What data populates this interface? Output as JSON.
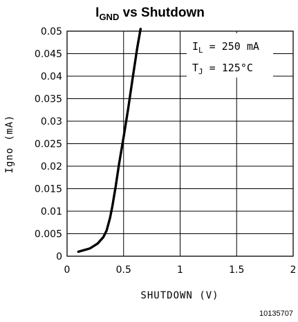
{
  "chart_data": {
    "type": "line",
    "title_main": "I",
    "title_sub": "GND",
    "title_rest": " vs Shutdown",
    "xlabel": "SHUTDOWN (V)",
    "ylabel": "Igno (mA)",
    "xlim": [
      0,
      2
    ],
    "ylim": [
      0,
      0.05
    ],
    "x_ticks": [
      "0",
      "0.5",
      "1",
      "1.5",
      "2"
    ],
    "y_ticks": [
      "0",
      "0.005",
      "0.01",
      "0.015",
      "0.02",
      "0.025",
      "0.03",
      "0.035",
      "0.04",
      "0.045",
      "0.05"
    ],
    "grid": true,
    "series": [
      {
        "x": [
          0.1,
          0.2,
          0.27,
          0.32,
          0.35,
          0.38,
          0.4,
          0.43,
          0.46,
          0.5,
          0.54,
          0.58,
          0.62,
          0.65
        ],
        "y": [
          0.001,
          0.0017,
          0.0028,
          0.0042,
          0.0057,
          0.0085,
          0.011,
          0.0155,
          0.0205,
          0.0265,
          0.0327,
          0.0395,
          0.0462,
          0.0505
        ]
      }
    ],
    "annotation": {
      "line1_sym": "I",
      "line1_sub": "L",
      "line1_val": " = 250 mA",
      "line2_sym": "T",
      "line2_sub": "J",
      "line2_val": " = 125°C"
    },
    "figure_id": "10135707"
  }
}
